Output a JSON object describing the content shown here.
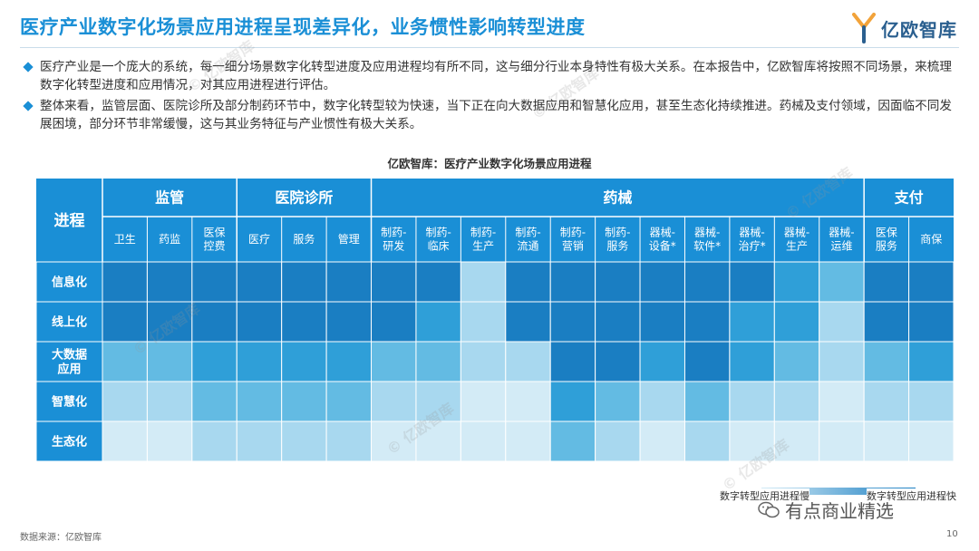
{
  "header": {
    "title": "医疗产业数字化场景应用进程呈现差异化，业务惯性影响转型进度",
    "logo_text": "亿欧智库"
  },
  "bullets": [
    "医疗产业是一个庞大的系统，每一细分场景数字化转型进度及应用进程均有所不同，这与细分行业本身特性有极大关系。在本报告中，亿欧智库将按照不同场景，来梳理数字化转型进度和应用情况，对其应用进程进行评估。",
    "整体来看，监管层面、医院诊所及部分制药环节中，数字化转型较为快速，当下正在向大数据应用和智慧化应用，甚至生态化持续推进。药械及支付领域，因面临不同发展困境，部分环节非常缓慢，这与其业务特征与产业惯性有极大关系。"
  ],
  "chart_title": "亿欧智库：医疗产业数字化场景应用进程",
  "chart_data": {
    "type": "heatmap",
    "corner_label": "进程",
    "groups": [
      {
        "name": "监管",
        "span": 3
      },
      {
        "name": "医院诊所",
        "span": 3
      },
      {
        "name": "药械",
        "span": 11
      },
      {
        "name": "支付",
        "span": 2
      }
    ],
    "columns": [
      "卫生",
      "药监",
      "医保\n控费",
      "医疗",
      "服务",
      "管理",
      "制药-\n研发",
      "制药-\n临床",
      "制药-\n生产",
      "制药-\n流通",
      "制药-\n营销",
      "制药-\n服务",
      "器械-\n设备*",
      "器械-\n软件*",
      "器械-\n治疗*",
      "器械-\n生产",
      "器械-\n运维",
      "医保\n服务",
      "商保"
    ],
    "rows": [
      "信息化",
      "线上化",
      "大数据\n应用",
      "智慧化",
      "生态化"
    ],
    "values": [
      [
        5,
        5,
        5,
        5,
        5,
        5,
        5,
        5,
        2,
        5,
        5,
        5,
        5,
        5,
        5,
        4,
        3,
        5,
        5
      ],
      [
        5,
        5,
        5,
        5,
        5,
        5,
        5,
        4,
        2,
        5,
        5,
        5,
        5,
        5,
        4,
        4,
        2,
        5,
        5
      ],
      [
        3,
        3,
        4,
        4,
        4,
        4,
        3,
        3,
        2,
        2,
        5,
        5,
        4,
        5,
        4,
        3,
        2,
        3,
        4
      ],
      [
        2,
        2,
        3,
        3,
        3,
        3,
        2,
        2,
        1,
        1,
        4,
        3,
        2,
        3,
        2,
        2,
        1,
        2,
        2
      ],
      [
        1,
        1,
        2,
        2,
        2,
        2,
        1,
        1,
        1,
        1,
        3,
        2,
        1,
        2,
        1,
        1,
        1,
        1,
        1
      ]
    ],
    "scale_min_label": "数字转型应用进程慢",
    "scale_max_label": "数字转型应用进程快",
    "palette": [
      "#d3ebf6",
      "#a8d8ef",
      "#63bbe3",
      "#2f9fd8",
      "#1a7ec2"
    ],
    "header_color": "#1a8fd6"
  },
  "footer": {
    "source": "数据来源：亿欧智库",
    "page": "10",
    "wechat": "有点商业精选"
  },
  "watermark_text": "© 亿欧智库"
}
